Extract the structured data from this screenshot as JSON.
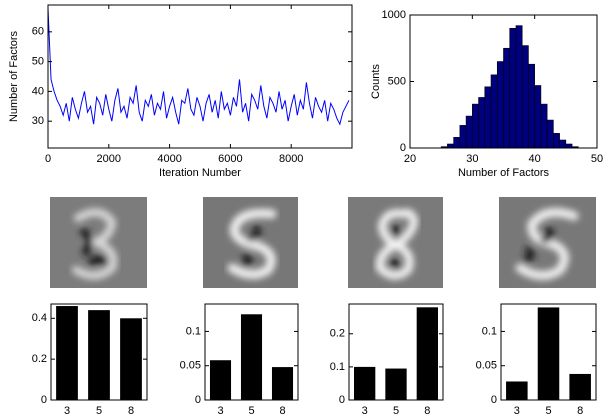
{
  "chart_data": [
    {
      "type": "line",
      "xlabel": "Iteration Number",
      "ylabel": "Number of Factors",
      "color": "#0000ff",
      "xlim": [
        0,
        10000
      ],
      "ylim": [
        21,
        69
      ],
      "xticks": [
        0,
        2000,
        4000,
        6000,
        8000
      ],
      "yticks": [
        30,
        40,
        50,
        60
      ],
      "x": [
        0,
        100,
        200,
        300,
        400,
        500,
        600,
        700,
        800,
        900,
        1000,
        1100,
        1200,
        1300,
        1400,
        1500,
        1600,
        1700,
        1800,
        1900,
        2000,
        2100,
        2200,
        2300,
        2400,
        2500,
        2600,
        2700,
        2800,
        2900,
        3000,
        3100,
        3200,
        3300,
        3400,
        3500,
        3600,
        3700,
        3800,
        3900,
        4000,
        4100,
        4200,
        4300,
        4400,
        4500,
        4600,
        4700,
        4800,
        4900,
        5000,
        5100,
        5200,
        5300,
        5400,
        5500,
        5600,
        5700,
        5800,
        5900,
        6000,
        6100,
        6200,
        6300,
        6400,
        6500,
        6600,
        6700,
        6800,
        6900,
        7000,
        7100,
        7200,
        7300,
        7400,
        7500,
        7600,
        7700,
        7800,
        7900,
        8000,
        8100,
        8200,
        8300,
        8400,
        8500,
        8600,
        8700,
        8800,
        8900,
        9000,
        9100,
        9200,
        9300,
        9400,
        9500,
        9600,
        9700,
        9800,
        9900
      ],
      "values": [
        68,
        44,
        40,
        37,
        35,
        32,
        36,
        30,
        38,
        34,
        31,
        36,
        40,
        33,
        35,
        29,
        38,
        36,
        32,
        39,
        34,
        30,
        37,
        41,
        33,
        35,
        31,
        38,
        36,
        42,
        33,
        30,
        37,
        35,
        39,
        32,
        36,
        34,
        40,
        31,
        35,
        38,
        33,
        29,
        37,
        36,
        41,
        34,
        32,
        38,
        35,
        30,
        36,
        39,
        33,
        37,
        31,
        40,
        34,
        36,
        32,
        38,
        35,
        44,
        33,
        36,
        30,
        39,
        37,
        34,
        42,
        35,
        31,
        38,
        36,
        33,
        40,
        34,
        37,
        30,
        35,
        39,
        32,
        37,
        34,
        43,
        36,
        31,
        38,
        35,
        33,
        37,
        30,
        36,
        34,
        31,
        29,
        33,
        35,
        37
      ]
    },
    {
      "type": "histogram",
      "xlabel": "Number of Factors",
      "ylabel": "Counts",
      "color": "#00007f",
      "xlim": [
        20,
        50
      ],
      "ylim": [
        0,
        1000
      ],
      "xticks": [
        20,
        30,
        40,
        50
      ],
      "yticks": [
        0,
        500,
        1000
      ],
      "bins": [
        25,
        26,
        27,
        28,
        29,
        30,
        31,
        32,
        33,
        34,
        35,
        36,
        37,
        38,
        39,
        40,
        41,
        42,
        43,
        44,
        45,
        46,
        47
      ],
      "values": [
        10,
        30,
        80,
        170,
        240,
        330,
        380,
        460,
        550,
        650,
        750,
        900,
        920,
        770,
        630,
        470,
        330,
        210,
        110,
        60,
        30,
        10
      ]
    },
    {
      "type": "bar",
      "color": "#000000",
      "categories": [
        "3",
        "5",
        "8"
      ],
      "values": [
        0.46,
        0.44,
        0.4
      ],
      "ylim": [
        0,
        0.47
      ],
      "yticks": [
        0,
        0.2,
        0.4
      ]
    },
    {
      "type": "bar",
      "color": "#000000",
      "categories": [
        "3",
        "5",
        "8"
      ],
      "values": [
        0.058,
        0.125,
        0.048
      ],
      "ylim": [
        0,
        0.14
      ],
      "yticks": [
        0,
        0.05,
        0.1
      ]
    },
    {
      "type": "bar",
      "color": "#000000",
      "categories": [
        "3",
        "5",
        "8"
      ],
      "values": [
        0.1,
        0.095,
        0.28
      ],
      "ylim": [
        0,
        0.29
      ],
      "yticks": [
        0,
        0.1,
        0.2
      ]
    },
    {
      "type": "bar",
      "color": "#000000",
      "categories": [
        "3",
        "5",
        "8"
      ],
      "values": [
        0.027,
        0.135,
        0.038
      ],
      "ylim": [
        0,
        0.14
      ],
      "yticks": [
        0,
        0.05,
        0.1
      ]
    }
  ]
}
